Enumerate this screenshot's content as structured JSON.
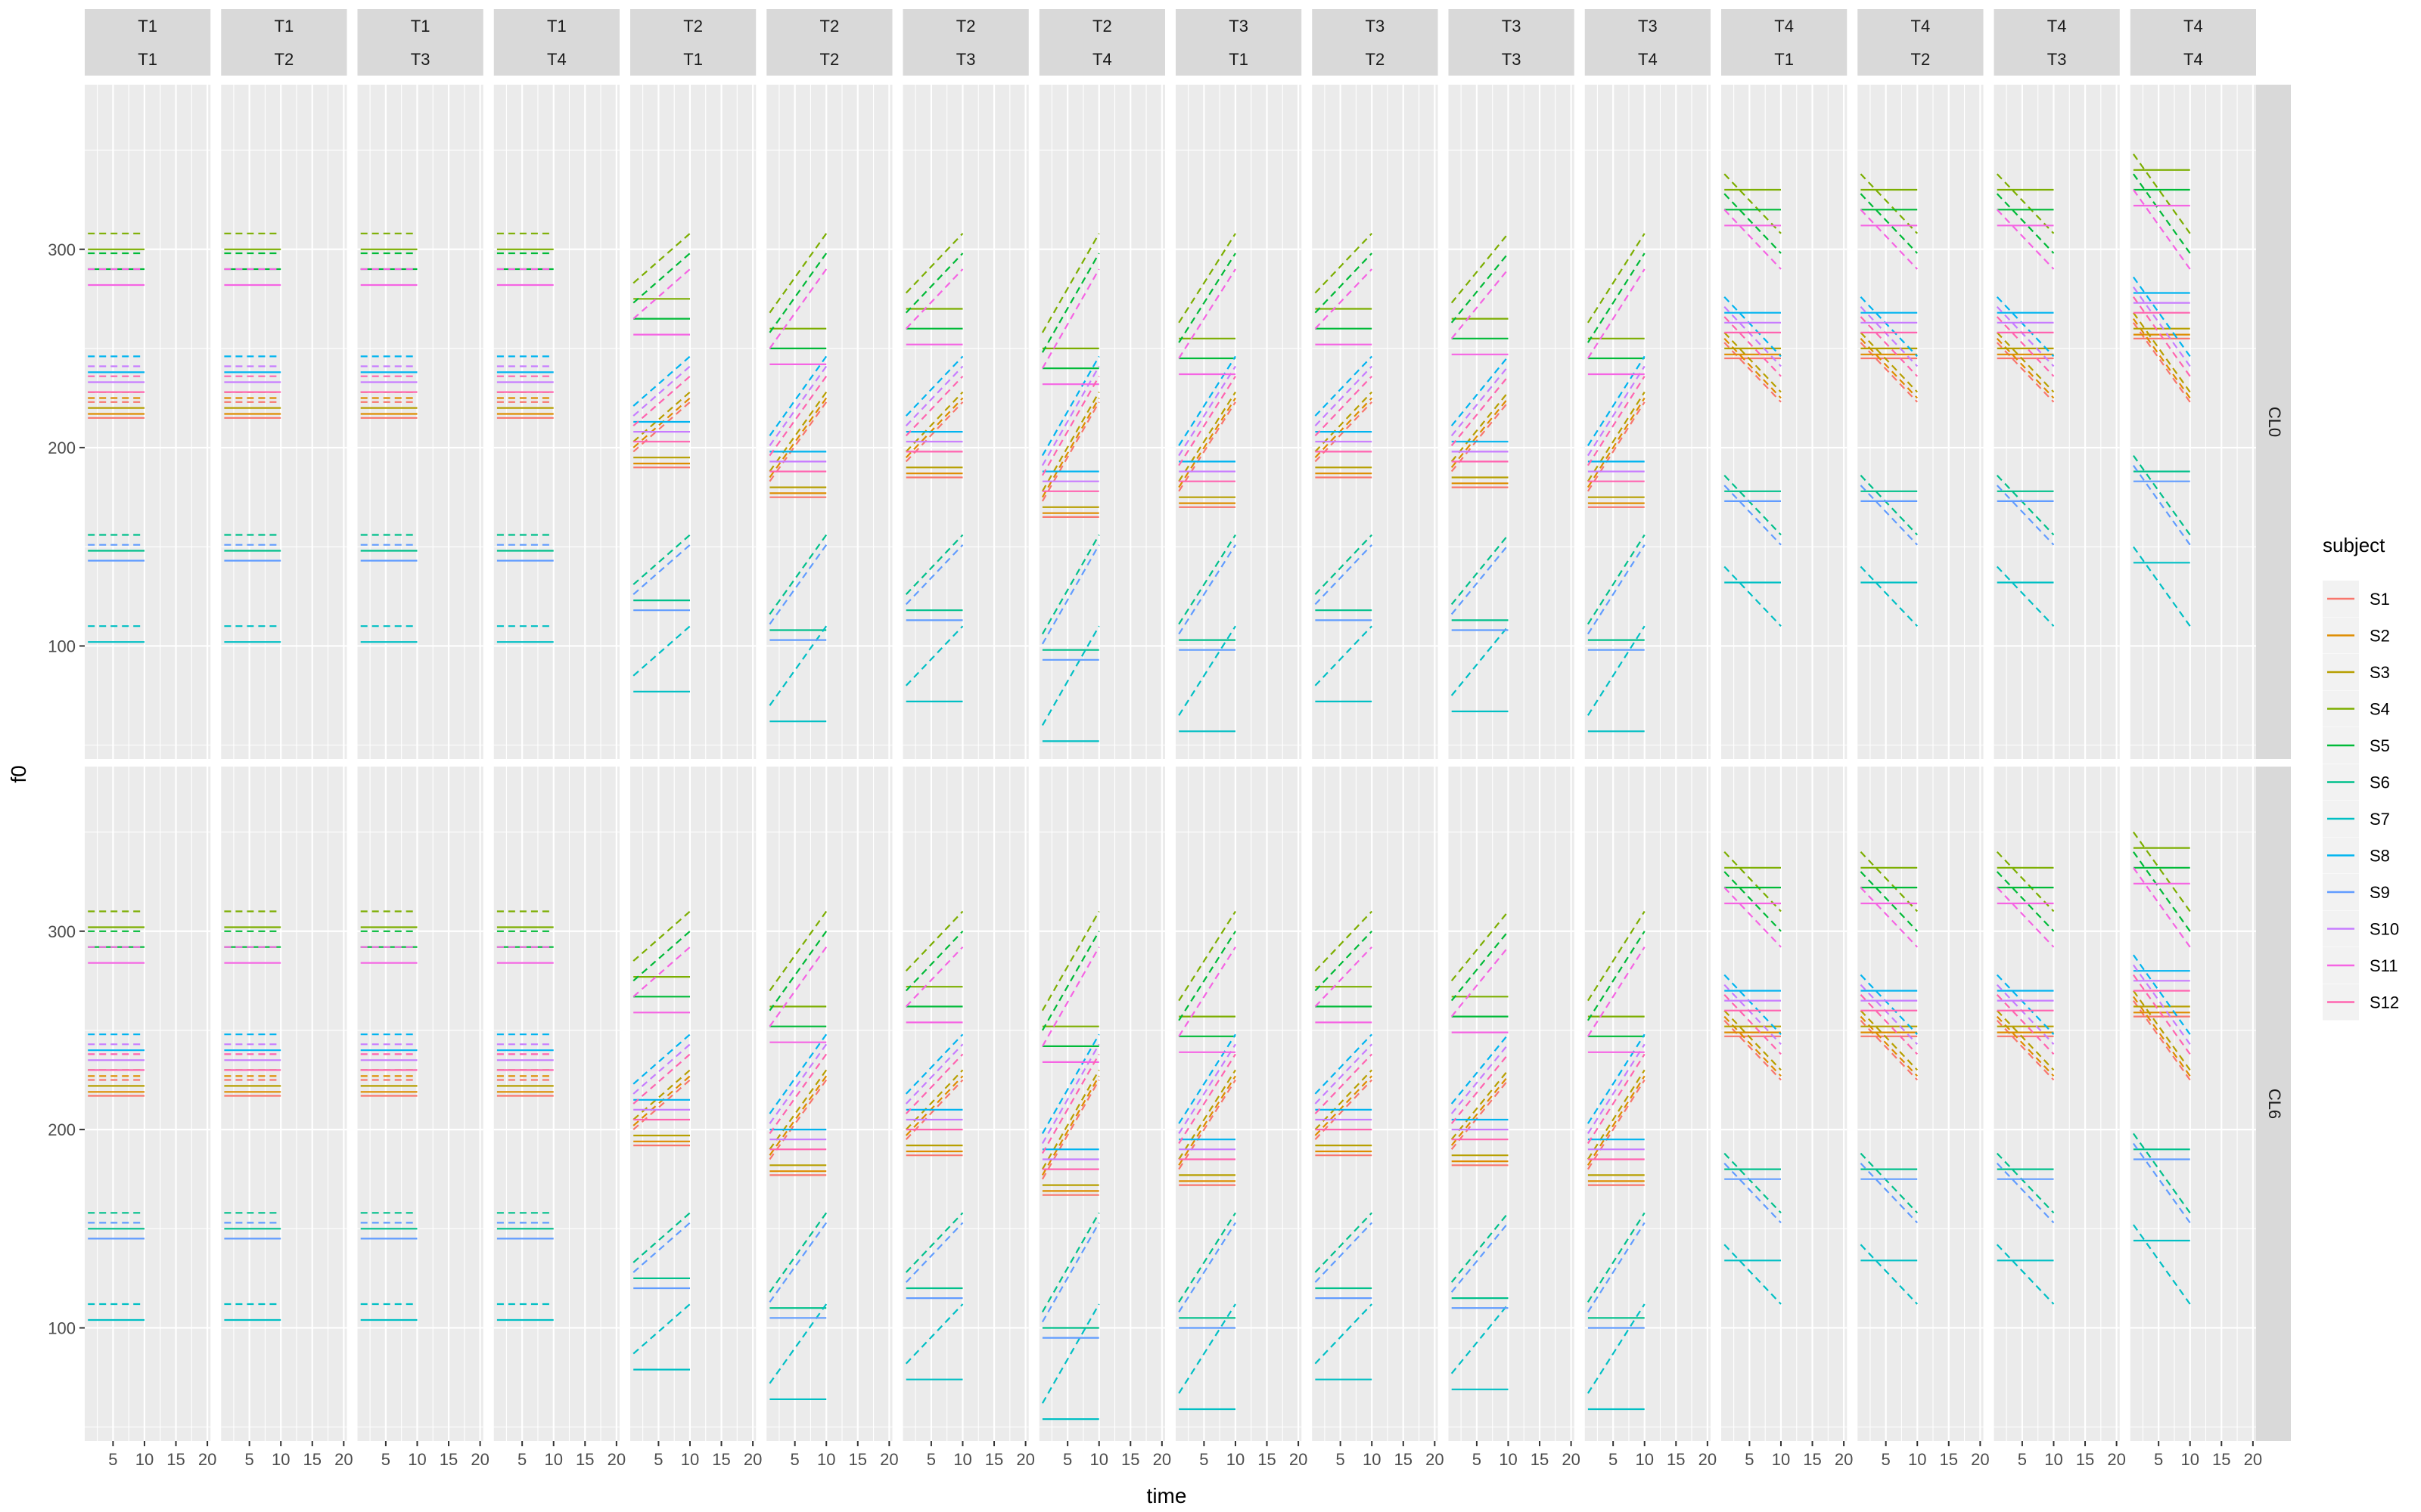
{
  "chart_data": {
    "type": "line",
    "title": "",
    "xlabel": "time",
    "ylabel": "f0",
    "xlim": [
      0.5,
      20.5
    ],
    "ylim": [
      43,
      383
    ],
    "x_ticks": [
      5,
      10,
      15,
      20
    ],
    "y_ticks": [
      100,
      200,
      300
    ],
    "grid": true,
    "legend": {
      "title": "subject",
      "position": "right",
      "entries": [
        "S1",
        "S2",
        "S3",
        "S4",
        "S5",
        "S6",
        "S7",
        "S8",
        "S9",
        "S10",
        "S11",
        "S12"
      ],
      "colors": [
        "#F8766D",
        "#DE8C00",
        "#B79F00",
        "#7CAE00",
        "#00BA38",
        "#00C08B",
        "#00BFC4",
        "#00B4F0",
        "#619CFF",
        "#C77CFF",
        "#F564E3",
        "#FF64B0"
      ]
    },
    "facet_columns": [
      {
        "top": "T1",
        "bottom": "T1"
      },
      {
        "top": "T1",
        "bottom": "T2"
      },
      {
        "top": "T1",
        "bottom": "T3"
      },
      {
        "top": "T1",
        "bottom": "T4"
      },
      {
        "top": "T2",
        "bottom": "T1"
      },
      {
        "top": "T2",
        "bottom": "T2"
      },
      {
        "top": "T2",
        "bottom": "T3"
      },
      {
        "top": "T2",
        "bottom": "T4"
      },
      {
        "top": "T3",
        "bottom": "T1"
      },
      {
        "top": "T3",
        "bottom": "T2"
      },
      {
        "top": "T3",
        "bottom": "T3"
      },
      {
        "top": "T3",
        "bottom": "T4"
      },
      {
        "top": "T4",
        "bottom": "T1"
      },
      {
        "top": "T4",
        "bottom": "T2"
      },
      {
        "top": "T4",
        "bottom": "T3"
      },
      {
        "top": "T4",
        "bottom": "T4"
      }
    ],
    "facet_rows": [
      "CL0",
      "CL6"
    ],
    "linetypes": [
      "solid",
      "dashed"
    ],
    "x": [
      1,
      10,
      20
    ],
    "subject_levels": {
      "S1": 215,
      "S2": 217,
      "S3": 220,
      "S4": 300,
      "S5": 290,
      "S6": 148,
      "S7": 102,
      "S8": 238,
      "S9": 143,
      "S10": 233,
      "S11": 282,
      "S12": 228
    },
    "contours": [
      [
        [
          0,
          0
        ],
        [
          0,
          0
        ],
        [
          0,
          0
        ]
      ],
      [
        [
          0,
          0
        ],
        [
          0,
          0
        ],
        [
          0,
          100
        ]
      ],
      [
        [
          0,
          0
        ],
        [
          0,
          0
        ],
        [
          0,
          -155
        ]
      ],
      [
        [
          0,
          0
        ],
        [
          0,
          0
        ],
        [
          0,
          -80
        ]
      ],
      [
        [
          -25,
          -25
        ],
        [
          -25,
          0
        ],
        [
          0,
          0
        ]
      ],
      [
        [
          -40,
          -40
        ],
        [
          -40,
          0
        ],
        [
          0,
          0
        ]
      ],
      [
        [
          -30,
          -30
        ],
        [
          -30,
          0
        ],
        [
          0,
          -140
        ]
      ],
      [
        [
          -50,
          -50
        ],
        [
          -50,
          0
        ],
        [
          0,
          -80
        ]
      ],
      [
        [
          -45,
          -45
        ],
        [
          -45,
          0
        ],
        [
          0,
          0
        ]
      ],
      [
        [
          -30,
          -30
        ],
        [
          -30,
          0
        ],
        [
          0,
          0
        ]
      ],
      [
        [
          -35,
          -35
        ],
        [
          -35,
          0
        ],
        [
          0,
          -130
        ]
      ],
      [
        [
          -45,
          -45
        ],
        [
          -45,
          0
        ],
        [
          0,
          -80
        ]
      ],
      [
        [
          30,
          30
        ],
        [
          30,
          0
        ],
        [
          0,
          0
        ]
      ],
      [
        [
          30,
          30
        ],
        [
          30,
          0
        ],
        [
          0,
          10
        ]
      ],
      [
        [
          30,
          30
        ],
        [
          30,
          0
        ],
        [
          0,
          -140
        ]
      ],
      [
        [
          40,
          40
        ],
        [
          40,
          0
        ],
        [
          0,
          -70
        ]
      ]
    ]
  }
}
